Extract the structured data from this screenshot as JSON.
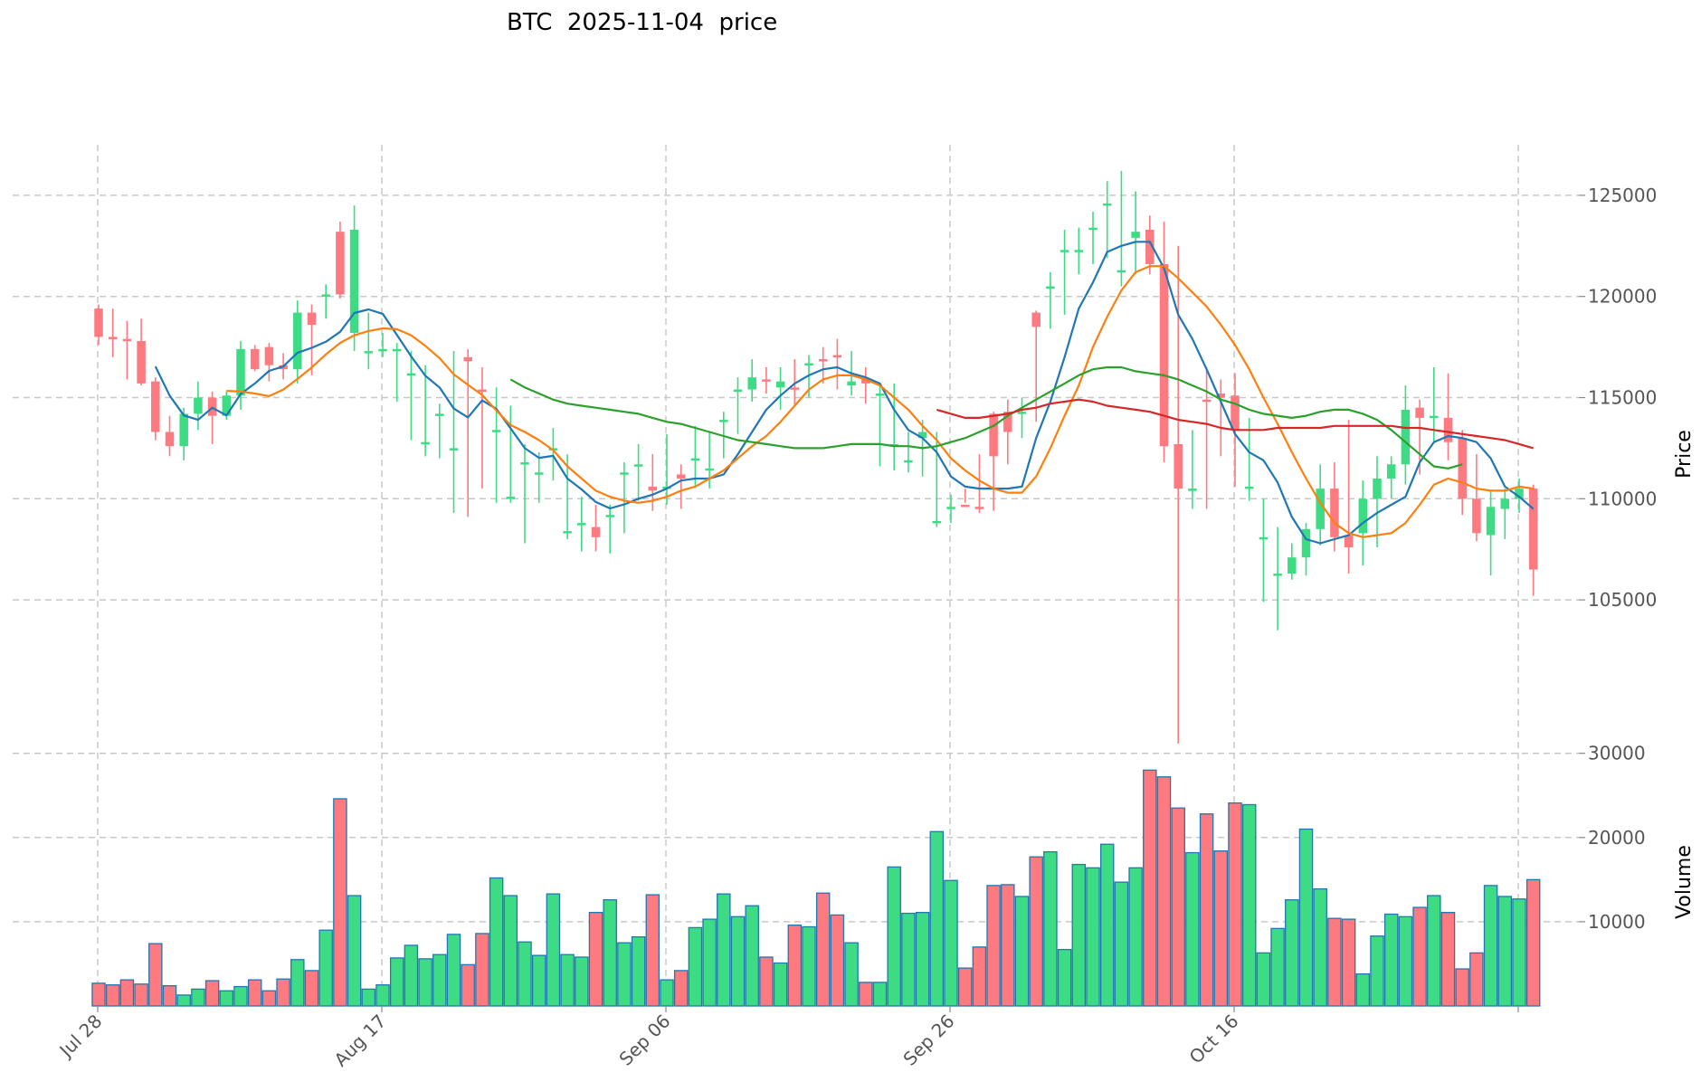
{
  "chart_data": {
    "type": "candlestick",
    "title": "BTC  2025-11-04  price",
    "price_panel": {
      "ylabel": "Price",
      "ylim": [
        97000,
        127500
      ],
      "yticks": [
        105000,
        110000,
        115000,
        120000,
        125000
      ],
      "ytick_labels": [
        "105000",
        "110000",
        "115000",
        "120000",
        "125000"
      ]
    },
    "volume_panel": {
      "ylabel": "Volume",
      "ylim": [
        0,
        29000
      ],
      "yticks": [
        10000,
        20000,
        30000
      ],
      "ytick_labels": [
        "10000",
        "20000",
        "30000"
      ]
    },
    "x_ticks": [
      {
        "index": 0,
        "label": "Jul 28"
      },
      {
        "index": 20,
        "label": "Aug 17"
      },
      {
        "index": 40,
        "label": "Sep 06"
      },
      {
        "index": 60,
        "label": "Sep 26"
      },
      {
        "index": 80,
        "label": "Oct 16"
      },
      {
        "index": 100,
        "label": ""
      }
    ],
    "colors": {
      "up": "#3ddc84",
      "down": "#fc7a80",
      "volume_edge": "#1f77b4",
      "ma5": "#1f77b4",
      "ma10": "#ff7f0e",
      "ma30": "#2ca02c",
      "ma60": "#d62728",
      "grid": "#c8c8c8",
      "tick_text": "#555555"
    },
    "open": [
      119400,
      118000,
      117900,
      117800,
      115800,
      113300,
      112600,
      114200,
      115000,
      114100,
      115100,
      117400,
      117500,
      116600,
      116400,
      119200,
      120000,
      123200,
      118200,
      117300,
      117400,
      117400,
      116200,
      112800,
      114200,
      112500,
      117000,
      115400,
      113400,
      110100,
      111800,
      111300,
      112500,
      108300,
      108800,
      108600,
      109200,
      111200,
      111700,
      110600,
      110500,
      111200,
      112000,
      111500,
      113900,
      115400,
      115400,
      115900,
      115500,
      115500,
      116700,
      116900,
      117100,
      115600,
      115900,
      115100,
      112600,
      111900,
      113000,
      108900,
      109600,
      109700,
      109600,
      114200,
      114300,
      114200,
      119200,
      120500,
      122300,
      122300,
      123400,
      124600,
      121300,
      122900,
      123300,
      121600,
      112700,
      110500,
      114900,
      115200,
      115100,
      110600,
      108100,
      106300,
      106300,
      107100,
      108500,
      110500,
      108200,
      108300,
      110000,
      111000,
      111700,
      114500,
      114000,
      114000,
      113000,
      110000,
      108200,
      109500,
      110000,
      110500
    ],
    "close": [
      118000,
      117900,
      117800,
      115700,
      113300,
      112600,
      114200,
      115000,
      114100,
      115100,
      117400,
      116400,
      116600,
      116400,
      119200,
      118600,
      120100,
      120100,
      123300,
      117300,
      117400,
      117400,
      116200,
      112800,
      114200,
      112500,
      116800,
      115300,
      113400,
      110100,
      111800,
      111300,
      112500,
      108400,
      108800,
      108100,
      109200,
      111300,
      111700,
      110400,
      110600,
      111000,
      112000,
      111500,
      113900,
      115400,
      116000,
      115800,
      115800,
      115400,
      116700,
      116800,
      117000,
      115800,
      115700,
      115200,
      112700,
      111900,
      113300,
      108900,
      109600,
      109600,
      109500,
      112100,
      113300,
      114300,
      118500,
      120500,
      122300,
      122300,
      123400,
      124600,
      121300,
      123200,
      121600,
      112600,
      110500,
      110500,
      114800,
      115000,
      113400,
      110600,
      108100,
      106300,
      107100,
      108500,
      110500,
      108100,
      107600,
      110000,
      111000,
      111700,
      114400,
      114000,
      114100,
      112800,
      110000,
      108300,
      109600,
      110000,
      110500,
      106500
    ],
    "high": [
      119600,
      119400,
      118800,
      118900,
      116000,
      114100,
      114500,
      115800,
      115300,
      115300,
      117800,
      117600,
      117700,
      117200,
      119800,
      119600,
      120600,
      123700,
      124500,
      119200,
      118200,
      117700,
      117300,
      116600,
      114700,
      117300,
      117400,
      116500,
      115500,
      114600,
      112700,
      112300,
      113500,
      112200,
      110100,
      109700,
      109700,
      111800,
      112700,
      112200,
      113200,
      111700,
      113600,
      113300,
      114300,
      116000,
      116900,
      116500,
      116500,
      116900,
      117100,
      117500,
      117900,
      117300,
      116500,
      115700,
      115700,
      113300,
      113900,
      113300,
      110200,
      110500,
      112200,
      114300,
      114900,
      115000,
      119300,
      121200,
      123300,
      123400,
      124200,
      125700,
      126200,
      125200,
      124000,
      123700,
      122500,
      113400,
      116500,
      115900,
      116200,
      114000,
      110000,
      108600,
      107800,
      108800,
      111700,
      111800,
      113900,
      110900,
      112100,
      112100,
      115600,
      114900,
      116500,
      116200,
      113400,
      112200,
      110400,
      110500,
      111000,
      110700
    ],
    "low": [
      117600,
      117000,
      115900,
      115600,
      112900,
      112100,
      111900,
      113400,
      112700,
      113900,
      114400,
      116300,
      115800,
      115900,
      115700,
      116100,
      118900,
      119900,
      117300,
      116400,
      117000,
      114800,
      112900,
      112100,
      112000,
      109300,
      109100,
      110500,
      109800,
      109800,
      107800,
      109800,
      110900,
      108000,
      107400,
      107400,
      107300,
      108300,
      109900,
      109400,
      109700,
      109500,
      110600,
      110500,
      112000,
      113200,
      114800,
      115200,
      114400,
      114600,
      115000,
      115700,
      115400,
      115100,
      114700,
      111600,
      111400,
      111300,
      111100,
      108600,
      108800,
      109800,
      109300,
      109400,
      111700,
      113000,
      113800,
      118400,
      119100,
      121100,
      121600,
      121900,
      120500,
      121100,
      121100,
      111800,
      97900,
      109500,
      109500,
      112100,
      110600,
      109900,
      104900,
      103500,
      106000,
      106200,
      107700,
      107400,
      106300,
      106700,
      107600,
      110000,
      110700,
      111200,
      112800,
      111900,
      109200,
      107900,
      106200,
      108000,
      109300,
      105200
    ],
    "volume": [
      2700,
      2500,
      3100,
      2600,
      7400,
      2400,
      1300,
      2000,
      3000,
      1800,
      2300,
      3100,
      1800,
      3200,
      5500,
      4200,
      9000,
      24600,
      13100,
      2000,
      2500,
      5700,
      7200,
      5600,
      6100,
      8500,
      4900,
      8600,
      15200,
      13100,
      7600,
      6000,
      13300,
      6100,
      5800,
      11100,
      12600,
      7500,
      8200,
      13200,
      3100,
      4200,
      9300,
      10300,
      13300,
      10600,
      11900,
      5800,
      5100,
      9600,
      9400,
      13400,
      10800,
      7500,
      2800,
      2800,
      16500,
      11000,
      11100,
      20700,
      14900,
      4500,
      7000,
      14300,
      14400,
      13000,
      17700,
      18300,
      6700,
      16800,
      16400,
      19200,
      14700,
      16400,
      28000,
      27200,
      23500,
      18200,
      22800,
      18400,
      24100,
      23900,
      6300,
      9200,
      12600,
      21000,
      13900,
      10400,
      10300,
      3800,
      8300,
      10900,
      10600,
      11700,
      13100,
      11100,
      4400,
      6300,
      14300,
      13000,
      12700,
      15000
    ],
    "ma5": [
      null,
      null,
      null,
      null,
      116540,
      115100,
      114120,
      113900,
      114500,
      114120,
      115180,
      115700,
      116320,
      116540,
      117220,
      117460,
      117760,
      118250,
      119180,
      119360,
      119140,
      118100,
      117040,
      116080,
      115500,
      114460,
      114020,
      114860,
      114440,
      113480,
      112500,
      112020,
      112120,
      111000,
      110460,
      109840,
      109520,
      109720,
      110000,
      110200,
      110500,
      110900,
      111000,
      111000,
      111200,
      112200,
      113300,
      114400,
      115100,
      115700,
      116100,
      116400,
      116500,
      116200,
      116000,
      115700,
      114400,
      113400,
      113000,
      112300,
      111100,
      110600,
      110500,
      110500,
      110500,
      110600,
      113000,
      114800,
      117000,
      119400,
      120700,
      122200,
      122500,
      122700,
      122700,
      121400,
      119100,
      117900,
      116400,
      114800,
      113200,
      112300,
      111900,
      110800,
      109100,
      108000,
      107800,
      108000,
      108200,
      108800,
      109300,
      109700,
      110100,
      111800,
      112800,
      113100,
      113000,
      112800,
      112000,
      110600,
      110100,
      109500
    ],
    "ma10": [
      null,
      null,
      null,
      null,
      null,
      null,
      null,
      null,
      null,
      115330,
      115300,
      115200,
      115070,
      115400,
      115920,
      116490,
      117140,
      117700,
      118080,
      118290,
      118420,
      118380,
      118080,
      117560,
      116950,
      116150,
      115630,
      115130,
      114360,
      113640,
      113300,
      112900,
      112400,
      111600,
      111000,
      110400,
      110100,
      109900,
      109800,
      109900,
      110100,
      110400,
      110600,
      111000,
      111400,
      112000,
      112600,
      113100,
      113800,
      114600,
      115400,
      115900,
      116100,
      116100,
      115900,
      115600,
      115000,
      114400,
      113600,
      112900,
      112000,
      111400,
      110900,
      110500,
      110300,
      110300,
      111100,
      112500,
      114100,
      115600,
      117500,
      119000,
      120300,
      121200,
      121500,
      121500,
      120900,
      120200,
      119500,
      118600,
      117600,
      116400,
      115000,
      113700,
      112300,
      111000,
      109800,
      108800,
      108300,
      108100,
      108200,
      108300,
      108800,
      109700,
      110700,
      111000,
      110800,
      110500,
      110400,
      110400,
      110600,
      110500
    ],
    "ma30": [
      null,
      null,
      null,
      null,
      null,
      null,
      null,
      null,
      null,
      null,
      null,
      null,
      null,
      null,
      null,
      null,
      null,
      null,
      null,
      null,
      null,
      null,
      null,
      null,
      null,
      null,
      null,
      null,
      null,
      115900,
      115500,
      115200,
      114900,
      114700,
      114600,
      114500,
      114400,
      114300,
      114200,
      114000,
      113800,
      113700,
      113500,
      113300,
      113100,
      112900,
      112800,
      112700,
      112600,
      112500,
      112500,
      112500,
      112600,
      112700,
      112700,
      112700,
      112600,
      112600,
      112500,
      112600,
      112800,
      113000,
      113300,
      113600,
      114100,
      114500,
      114900,
      115300,
      115700,
      116100,
      116400,
      116500,
      116500,
      116300,
      116200,
      116100,
      115900,
      115600,
      115300,
      114900,
      114700,
      114400,
      114200,
      114100,
      114000,
      114100,
      114300,
      114400,
      114400,
      114200,
      113900,
      113400,
      112800,
      112200,
      111600,
      111500,
      111700
    ],
    "ma60": [
      null,
      null,
      null,
      null,
      null,
      null,
      null,
      null,
      null,
      null,
      null,
      null,
      null,
      null,
      null,
      null,
      null,
      null,
      null,
      null,
      null,
      null,
      null,
      null,
      null,
      null,
      null,
      null,
      null,
      null,
      null,
      null,
      null,
      null,
      null,
      null,
      null,
      null,
      null,
      null,
      null,
      null,
      null,
      null,
      null,
      null,
      null,
      null,
      null,
      null,
      null,
      null,
      null,
      null,
      null,
      null,
      null,
      null,
      null,
      114400,
      114200,
      114000,
      114000,
      114100,
      114200,
      114400,
      114500,
      114700,
      114800,
      114900,
      114800,
      114600,
      114500,
      114400,
      114300,
      114100,
      113900,
      113800,
      113700,
      113500,
      113400,
      113400,
      113400,
      113500,
      113500,
      113500,
      113500,
      113600,
      113600,
      113600,
      113600,
      113600,
      113500,
      113500,
      113400,
      113300,
      113200,
      113100,
      113000,
      112900,
      112700,
      112500
    ]
  }
}
